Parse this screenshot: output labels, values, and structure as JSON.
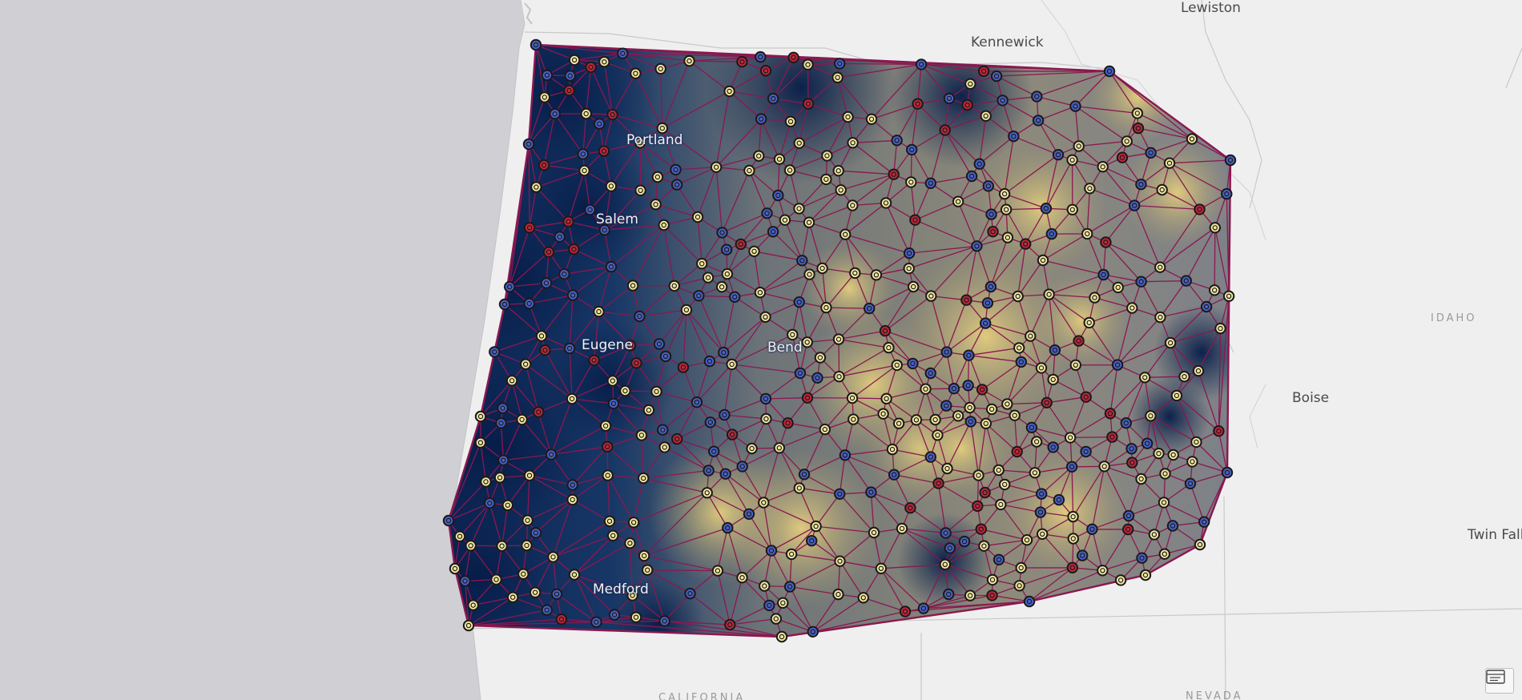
{
  "map": {
    "cities": {
      "lewiston": "Lewiston",
      "kennewick": "Kennewick",
      "portland": "Portland",
      "salem": "Salem",
      "eugene": "Eugene",
      "bend": "Bend",
      "medford": "Medford",
      "boise": "Boise",
      "twin_falls": "Twin Falls"
    },
    "states": {
      "idaho": "IDAHO",
      "nevada": "NEVADA",
      "california": "CALIFORNIA"
    },
    "legend_icon": "legend-icon"
  },
  "colors": {
    "ocean": "#cfcfd3",
    "land": "#efefef",
    "surface_low": "#0c2350",
    "surface_mid": "#6f7e88",
    "surface_high": "#d9c37a",
    "tin_edge": "#8a1850",
    "point_low": "#4a62c8",
    "point_mid": "#f3e7a0",
    "point_high": "#c0283c",
    "point_outline": "#1a1a1a"
  }
}
